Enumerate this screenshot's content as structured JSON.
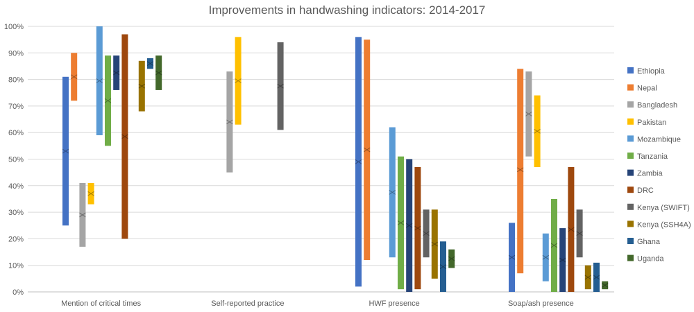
{
  "chart_data": {
    "type": "bar",
    "subtype": "floating-range with midpoint markers",
    "title": "Improvements in handwashing indicators: 2014-2017",
    "categories": [
      "Mention of critical times",
      "Self-reported practice",
      "HWF presence",
      "Soap/ash presence"
    ],
    "ylim": [
      0,
      100
    ],
    "yticks": [
      "0%",
      "10%",
      "20%",
      "30%",
      "40%",
      "50%",
      "60%",
      "70%",
      "80%",
      "90%",
      "100%"
    ],
    "legend_position": "right",
    "grid": true,
    "series": [
      {
        "name": "Ethiopia",
        "color": "#4472C4",
        "ranges": [
          [
            25,
            81,
            53
          ],
          null,
          [
            2,
            96,
            49
          ],
          [
            0,
            26,
            13
          ]
        ]
      },
      {
        "name": "Nepal",
        "color": "#ED7D31",
        "ranges": [
          [
            72,
            90,
            81
          ],
          null,
          [
            12,
            95,
            53.5
          ],
          [
            7,
            84,
            46
          ]
        ]
      },
      {
        "name": "Bangladesh",
        "color": "#A5A5A5",
        "ranges": [
          [
            17,
            41,
            29
          ],
          [
            45,
            83,
            64
          ],
          null,
          [
            51,
            83,
            67
          ]
        ]
      },
      {
        "name": "Pakistan",
        "color": "#FFC000",
        "ranges": [
          [
            33,
            41,
            37
          ],
          [
            63,
            96,
            79.5
          ],
          null,
          [
            47,
            74,
            60.5
          ]
        ]
      },
      {
        "name": "Mozambique",
        "color": "#5B9BD5",
        "ranges": [
          [
            59,
            100,
            79.5
          ],
          null,
          [
            13,
            62,
            37.5
          ],
          [
            4,
            22,
            13
          ]
        ]
      },
      {
        "name": "Tanzania",
        "color": "#70AD47",
        "ranges": [
          [
            55,
            89,
            72
          ],
          null,
          [
            1,
            51,
            26
          ],
          [
            0,
            35,
            17.5
          ]
        ]
      },
      {
        "name": "Zambia",
        "color": "#264478",
        "ranges": [
          [
            76,
            89,
            82.5
          ],
          null,
          [
            0,
            50,
            25
          ],
          [
            0,
            24,
            12
          ]
        ]
      },
      {
        "name": "DRC",
        "color": "#9E480E",
        "ranges": [
          [
            20,
            97,
            58.5
          ],
          null,
          [
            1,
            47,
            24
          ],
          [
            0,
            47,
            23.5
          ]
        ]
      },
      {
        "name": "Kenya (SWIFT)",
        "color": "#636363",
        "ranges": [
          null,
          [
            61,
            94,
            77.5
          ],
          [
            13,
            31,
            22
          ],
          [
            13,
            31,
            22
          ]
        ]
      },
      {
        "name": "Kenya (SSH4A)",
        "color": "#997300",
        "ranges": [
          [
            68,
            87,
            77.5
          ],
          null,
          [
            5,
            31,
            18
          ],
          [
            1,
            10,
            5.5
          ]
        ]
      },
      {
        "name": "Ghana",
        "color": "#255E91",
        "ranges": [
          [
            84,
            88,
            86
          ],
          null,
          [
            0,
            19,
            9.5
          ],
          [
            0,
            11,
            5.5
          ]
        ]
      },
      {
        "name": "Uganda",
        "color": "#43682B",
        "ranges": [
          [
            76,
            89,
            82.5
          ],
          null,
          [
            9,
            16,
            12.5
          ],
          [
            1,
            4,
            2.5
          ]
        ]
      }
    ]
  }
}
